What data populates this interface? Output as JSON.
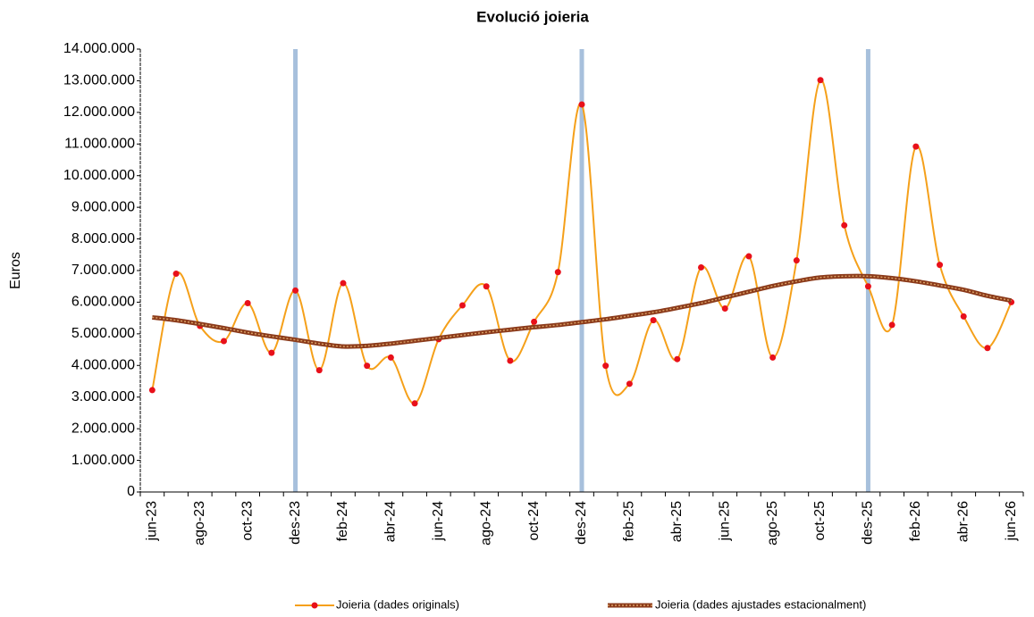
{
  "chart_data": {
    "type": "line",
    "title": "Evolució joieria",
    "y_label": "Euros",
    "categories": [
      "jun-23",
      null,
      "ago-23",
      null,
      "oct-23",
      null,
      "des-23",
      null,
      "feb-24",
      null,
      "abr-24",
      null,
      "jun-24",
      null,
      "ago-24",
      null,
      "oct-24",
      null,
      "des-24",
      null,
      "feb-25",
      null,
      "abr-25",
      null,
      "jun-25",
      null,
      "ago-25",
      null,
      "oct-25",
      null,
      "des-25",
      null,
      "feb-26",
      null,
      "abr-26",
      null,
      "jun-26"
    ],
    "series": [
      {
        "name": "Joieria (dades originals)",
        "color": "#f5a01a",
        "marker_color": "#e8101a",
        "values": [
          3220000,
          6900000,
          5250000,
          4770000,
          5970000,
          4400000,
          6370000,
          3850000,
          6600000,
          3990000,
          4250000,
          2800000,
          4830000,
          5900000,
          6500000,
          4150000,
          5380000,
          6950000,
          12250000,
          3990000,
          3420000,
          5430000,
          4200000,
          7100000,
          5800000,
          7450000,
          4250000,
          7320000,
          13020000,
          8430000,
          6500000,
          5280000,
          10920000,
          7180000,
          5550000,
          4550000,
          6000000
        ]
      },
      {
        "name": "Joieria (dades ajustades estacionalment)",
        "color": "#8b3a1a",
        "dot_color": "#d9a066",
        "values": [
          5520000,
          5430000,
          5310000,
          5180000,
          5040000,
          4920000,
          4810000,
          4690000,
          4600000,
          4620000,
          4690000,
          4780000,
          4870000,
          4960000,
          5050000,
          5130000,
          5210000,
          5280000,
          5370000,
          5460000,
          5570000,
          5680000,
          5820000,
          5970000,
          6150000,
          6330000,
          6510000,
          6660000,
          6780000,
          6820000,
          6820000,
          6760000,
          6660000,
          6530000,
          6390000,
          6200000,
          6050000
        ]
      }
    ],
    "ylim": [
      0,
      14000000
    ],
    "yticks": [
      0,
      {
        "value": 1000000,
        "label": "1.000.000"
      },
      {
        "value": 2000000,
        "label": "2.000.000"
      },
      {
        "value": 3000000,
        "label": "3.000.000"
      },
      {
        "value": 4000000,
        "label": "4.000.000"
      },
      {
        "value": 5000000,
        "label": "5.000.000"
      },
      {
        "value": 6000000,
        "label": "6.000.000"
      },
      {
        "value": 7000000,
        "label": "7.000.000"
      },
      {
        "value": 8000000,
        "label": "8.000.000"
      },
      {
        "value": 9000000,
        "label": "9.000.000"
      },
      {
        "value": 10000000,
        "label": "10.000.000"
      },
      {
        "value": 11000000,
        "label": "11.000.000"
      },
      {
        "value": 12000000,
        "label": "12.000.000"
      },
      {
        "value": 13000000,
        "label": "13.000.000"
      },
      {
        "value": 14000000,
        "label": "14.000.000"
      }
    ],
    "vertical_lines_at": [
      "des-23",
      "des-24",
      "des-25"
    ],
    "vertical_line_color": "#a7c0dc",
    "grid": false,
    "legend": "bottom"
  }
}
